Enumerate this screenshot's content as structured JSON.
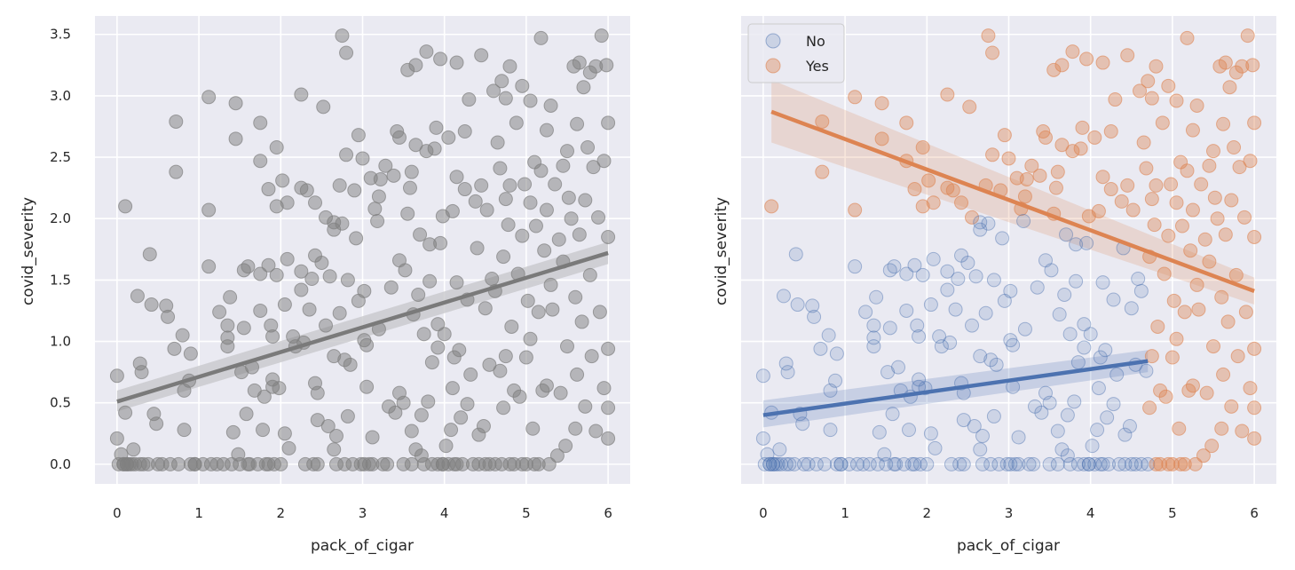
{
  "chart_data": [
    {
      "type": "scatter",
      "panel": "left",
      "xlabel": "pack_of_cigar",
      "ylabel": "covid_severity",
      "xlim": [
        -0.27,
        6.27
      ],
      "ylim": [
        -0.16,
        3.65
      ],
      "xticks": [
        "0",
        "1",
        "2",
        "3",
        "4",
        "5",
        "6"
      ],
      "yticks": [
        "0.0",
        "0.5",
        "1.0",
        "1.5",
        "2.0",
        "2.5",
        "3.0",
        "3.5"
      ],
      "grid": true,
      "colors": {
        "points": "#808080",
        "line": "#7a7a7a",
        "band": "#c8c8cc",
        "background": "#eaeaf2"
      },
      "regression": {
        "x": [
          0,
          6
        ],
        "y": [
          0.51,
          1.72
        ],
        "ci_lower": [
          0.43,
          1.63
        ],
        "ci_upper": [
          0.6,
          1.81
        ]
      },
      "points": [
        [
          0.0,
          0.72
        ],
        [
          0.0,
          0.21
        ],
        [
          0.02,
          0.0
        ],
        [
          0.05,
          0.08
        ],
        [
          0.08,
          0.0
        ],
        [
          0.1,
          2.1
        ],
        [
          0.1,
          0.42
        ],
        [
          0.12,
          0.0
        ],
        [
          0.15,
          0.0
        ],
        [
          0.18,
          0.0
        ],
        [
          0.2,
          0.12
        ],
        [
          0.22,
          0.0
        ],
        [
          0.25,
          1.37
        ],
        [
          0.28,
          0.82
        ],
        [
          0.3,
          0.75
        ],
        [
          0.32,
          0.0
        ],
        [
          0.4,
          1.71
        ],
        [
          0.42,
          1.3
        ],
        [
          0.45,
          0.41
        ],
        [
          0.48,
          0.33
        ],
        [
          0.5,
          0.0
        ],
        [
          0.55,
          0.0
        ],
        [
          0.6,
          1.29
        ],
        [
          0.62,
          1.2
        ],
        [
          0.65,
          0.0
        ],
        [
          0.7,
          0.94
        ],
        [
          0.72,
          2.79
        ],
        [
          0.72,
          2.38
        ],
        [
          0.75,
          0.0
        ],
        [
          0.8,
          1.05
        ],
        [
          0.82,
          0.6
        ],
        [
          0.82,
          0.28
        ],
        [
          0.88,
          0.68
        ],
        [
          0.9,
          0.9
        ],
        [
          0.9,
          0.0
        ],
        [
          0.95,
          0.0
        ],
        [
          1.05,
          0.0
        ],
        [
          1.12,
          2.99
        ],
        [
          1.12,
          2.07
        ],
        [
          1.12,
          1.61
        ],
        [
          1.15,
          0.0
        ],
        [
          1.25,
          1.24
        ],
        [
          1.3,
          0.0
        ],
        [
          1.35,
          1.13
        ],
        [
          1.35,
          1.03
        ],
        [
          1.35,
          0.96
        ],
        [
          1.38,
          1.36
        ],
        [
          1.4,
          0.0
        ],
        [
          1.42,
          0.26
        ],
        [
          1.45,
          2.94
        ],
        [
          1.45,
          2.65
        ],
        [
          1.48,
          0.08
        ],
        [
          1.5,
          0.0
        ],
        [
          1.52,
          0.75
        ],
        [
          1.55,
          1.58
        ],
        [
          1.55,
          1.11
        ],
        [
          1.58,
          0.41
        ],
        [
          1.6,
          1.61
        ],
        [
          1.62,
          0.0
        ],
        [
          1.65,
          0.79
        ],
        [
          1.68,
          0.6
        ],
        [
          1.72,
          0.0
        ],
        [
          1.75,
          2.78
        ],
        [
          1.75,
          2.47
        ],
        [
          1.75,
          1.55
        ],
        [
          1.75,
          1.25
        ],
        [
          1.78,
          0.28
        ],
        [
          1.8,
          0.55
        ],
        [
          1.82,
          0.0
        ],
        [
          1.85,
          1.62
        ],
        [
          1.85,
          2.24
        ],
        [
          1.88,
          1.13
        ],
        [
          1.9,
          1.04
        ],
        [
          1.9,
          0.69
        ],
        [
          1.9,
          0.63
        ],
        [
          1.92,
          0.0
        ],
        [
          1.95,
          2.58
        ],
        [
          1.95,
          2.1
        ],
        [
          1.95,
          1.54
        ],
        [
          1.98,
          0.62
        ],
        [
          2.0,
          0.0
        ],
        [
          2.02,
          2.31
        ],
        [
          2.05,
          1.3
        ],
        [
          2.05,
          0.25
        ],
        [
          2.08,
          1.67
        ],
        [
          2.08,
          2.13
        ],
        [
          2.1,
          0.13
        ],
        [
          2.15,
          1.04
        ],
        [
          2.18,
          0.96
        ],
        [
          2.25,
          3.01
        ],
        [
          2.25,
          2.25
        ],
        [
          2.25,
          1.57
        ],
        [
          2.25,
          1.42
        ],
        [
          2.28,
          0.99
        ],
        [
          2.3,
          0.0
        ],
        [
          2.32,
          2.23
        ],
        [
          2.35,
          1.26
        ],
        [
          2.38,
          1.51
        ],
        [
          2.4,
          0.0
        ],
        [
          2.42,
          2.13
        ],
        [
          2.42,
          1.7
        ],
        [
          2.42,
          0.66
        ],
        [
          2.45,
          0.58
        ],
        [
          2.45,
          0.36
        ],
        [
          2.45,
          0.0
        ],
        [
          2.5,
          1.64
        ],
        [
          2.52,
          2.91
        ],
        [
          2.55,
          2.01
        ],
        [
          2.55,
          1.13
        ],
        [
          2.58,
          0.31
        ],
        [
          2.6,
          1.53
        ],
        [
          2.65,
          1.91
        ],
        [
          2.65,
          1.97
        ],
        [
          2.65,
          0.88
        ],
        [
          2.65,
          0.12
        ],
        [
          2.68,
          0.23
        ],
        [
          2.68,
          0.0
        ],
        [
          2.72,
          2.27
        ],
        [
          2.72,
          1.23
        ],
        [
          2.75,
          3.49
        ],
        [
          2.75,
          1.96
        ],
        [
          2.78,
          0.85
        ],
        [
          2.8,
          3.35
        ],
        [
          2.8,
          2.52
        ],
        [
          2.82,
          1.5
        ],
        [
          2.82,
          0.39
        ],
        [
          2.85,
          0.81
        ],
        [
          2.88,
          0.0
        ],
        [
          2.9,
          2.23
        ],
        [
          2.92,
          1.84
        ],
        [
          2.95,
          2.68
        ],
        [
          2.95,
          1.33
        ],
        [
          2.98,
          0.0
        ],
        [
          3.0,
          2.49
        ],
        [
          3.02,
          1.41
        ],
        [
          3.02,
          1.01
        ],
        [
          3.05,
          0.97
        ],
        [
          3.05,
          0.63
        ],
        [
          3.08,
          0.0
        ],
        [
          3.1,
          2.33
        ],
        [
          3.12,
          0.22
        ],
        [
          3.12,
          0.0
        ],
        [
          3.15,
          2.08
        ],
        [
          3.18,
          1.98
        ],
        [
          3.2,
          2.18
        ],
        [
          3.2,
          1.1
        ],
        [
          3.22,
          2.32
        ],
        [
          3.25,
          0.0
        ],
        [
          3.28,
          2.43
        ],
        [
          3.32,
          0.47
        ],
        [
          3.35,
          1.44
        ],
        [
          3.38,
          2.35
        ],
        [
          3.4,
          0.42
        ],
        [
          3.42,
          2.71
        ],
        [
          3.45,
          2.66
        ],
        [
          3.45,
          1.66
        ],
        [
          3.45,
          0.58
        ],
        [
          3.5,
          0.5
        ],
        [
          3.5,
          0.0
        ],
        [
          3.52,
          1.58
        ],
        [
          3.55,
          3.21
        ],
        [
          3.55,
          2.04
        ],
        [
          3.58,
          2.25
        ],
        [
          3.6,
          2.38
        ],
        [
          3.6,
          0.27
        ],
        [
          3.62,
          1.22
        ],
        [
          3.65,
          3.25
        ],
        [
          3.65,
          2.6
        ],
        [
          3.65,
          0.12
        ],
        [
          3.68,
          1.38
        ],
        [
          3.7,
          1.87
        ],
        [
          3.72,
          0.4
        ],
        [
          3.72,
          0.07
        ],
        [
          3.75,
          1.06
        ],
        [
          3.75,
          0.0
        ],
        [
          3.78,
          3.36
        ],
        [
          3.78,
          2.55
        ],
        [
          3.8,
          0.51
        ],
        [
          3.82,
          1.79
        ],
        [
          3.82,
          1.49
        ],
        [
          3.85,
          0.83
        ],
        [
          3.85,
          0.0
        ],
        [
          3.88,
          2.57
        ],
        [
          3.9,
          2.74
        ],
        [
          3.92,
          1.14
        ],
        [
          3.92,
          0.95
        ],
        [
          3.95,
          3.3
        ],
        [
          3.95,
          1.8
        ],
        [
          3.98,
          2.02
        ],
        [
          3.98,
          0.0
        ],
        [
          4.0,
          1.06
        ],
        [
          4.02,
          0.15
        ],
        [
          4.05,
          2.66
        ],
        [
          4.08,
          0.28
        ],
        [
          4.1,
          2.06
        ],
        [
          4.1,
          0.62
        ],
        [
          4.12,
          0.87
        ],
        [
          4.12,
          0.0
        ],
        [
          4.15,
          3.27
        ],
        [
          4.15,
          2.34
        ],
        [
          4.15,
          1.48
        ],
        [
          4.18,
          0.93
        ],
        [
          4.2,
          0.38
        ],
        [
          4.22,
          0.0
        ],
        [
          4.25,
          2.71
        ],
        [
          4.25,
          2.24
        ],
        [
          4.28,
          1.34
        ],
        [
          4.28,
          0.49
        ],
        [
          4.3,
          2.97
        ],
        [
          4.32,
          0.73
        ],
        [
          4.35,
          0.0
        ],
        [
          4.38,
          2.14
        ],
        [
          4.4,
          1.76
        ],
        [
          4.42,
          0.24
        ],
        [
          4.45,
          3.33
        ],
        [
          4.45,
          2.27
        ],
        [
          4.48,
          0.31
        ],
        [
          4.5,
          1.27
        ],
        [
          4.5,
          0.0
        ],
        [
          4.52,
          2.07
        ],
        [
          4.55,
          0.81
        ],
        [
          4.58,
          1.51
        ],
        [
          4.6,
          3.04
        ],
        [
          4.62,
          1.41
        ],
        [
          4.62,
          0.0
        ],
        [
          4.65,
          2.62
        ],
        [
          4.68,
          2.41
        ],
        [
          4.68,
          0.76
        ],
        [
          4.7,
          3.12
        ],
        [
          4.72,
          1.69
        ],
        [
          4.72,
          0.46
        ],
        [
          4.75,
          2.98
        ],
        [
          4.75,
          2.16
        ],
        [
          4.75,
          0.88
        ],
        [
          4.78,
          1.95
        ],
        [
          4.8,
          3.24
        ],
        [
          4.8,
          2.27
        ],
        [
          4.8,
          0.0
        ],
        [
          4.82,
          1.12
        ],
        [
          4.85,
          0.6
        ],
        [
          4.88,
          2.78
        ],
        [
          4.9,
          1.55
        ],
        [
          4.92,
          0.55
        ],
        [
          4.95,
          3.08
        ],
        [
          4.95,
          1.86
        ],
        [
          4.98,
          2.28
        ],
        [
          5.0,
          0.87
        ],
        [
          5.0,
          0.0
        ],
        [
          5.02,
          1.33
        ],
        [
          5.05,
          2.96
        ],
        [
          5.05,
          2.13
        ],
        [
          5.05,
          1.02
        ],
        [
          5.08,
          0.29
        ],
        [
          5.1,
          2.46
        ],
        [
          5.12,
          1.94
        ],
        [
          5.15,
          1.24
        ],
        [
          5.18,
          3.47
        ],
        [
          5.18,
          2.39
        ],
        [
          5.2,
          0.6
        ],
        [
          5.22,
          1.74
        ],
        [
          5.25,
          2.72
        ],
        [
          5.25,
          2.07
        ],
        [
          5.25,
          0.64
        ],
        [
          5.28,
          0.0
        ],
        [
          5.3,
          1.46
        ],
        [
          5.3,
          2.92
        ],
        [
          5.32,
          1.26
        ],
        [
          5.35,
          2.28
        ],
        [
          5.38,
          0.07
        ],
        [
          5.4,
          1.83
        ],
        [
          5.42,
          0.58
        ],
        [
          5.45,
          2.43
        ],
        [
          5.45,
          1.65
        ],
        [
          5.48,
          0.15
        ],
        [
          5.5,
          2.55
        ],
        [
          5.5,
          0.96
        ],
        [
          5.52,
          2.17
        ],
        [
          5.55,
          2.0
        ],
        [
          5.58,
          3.24
        ],
        [
          5.6,
          1.36
        ],
        [
          5.6,
          0.29
        ],
        [
          5.62,
          2.77
        ],
        [
          5.62,
          0.73
        ],
        [
          5.65,
          3.27
        ],
        [
          5.65,
          1.87
        ],
        [
          5.68,
          1.16
        ],
        [
          5.7,
          3.07
        ],
        [
          5.72,
          2.15
        ],
        [
          5.72,
          0.47
        ],
        [
          5.75,
          2.58
        ],
        [
          5.78,
          3.19
        ],
        [
          5.78,
          1.54
        ],
        [
          5.8,
          0.88
        ],
        [
          5.82,
          2.42
        ],
        [
          5.85,
          3.24
        ],
        [
          5.85,
          0.27
        ],
        [
          5.88,
          2.01
        ],
        [
          5.9,
          1.24
        ],
        [
          5.92,
          3.49
        ],
        [
          5.95,
          2.47
        ],
        [
          5.95,
          0.62
        ],
        [
          5.98,
          3.25
        ],
        [
          6.0,
          2.78
        ],
        [
          6.0,
          1.85
        ],
        [
          6.0,
          0.94
        ],
        [
          6.0,
          0.46
        ],
        [
          6.0,
          0.21
        ],
        [
          4.05,
          0.0
        ],
        [
          4.15,
          0.0
        ],
        [
          4.42,
          0.0
        ],
        [
          4.55,
          0.0
        ],
        [
          4.7,
          0.0
        ],
        [
          4.85,
          0.0
        ],
        [
          4.95,
          0.0
        ],
        [
          5.1,
          0.0
        ],
        [
          5.15,
          0.0
        ],
        [
          2.78,
          0.0
        ],
        [
          3.02,
          0.0
        ],
        [
          3.3,
          0.0
        ],
        [
          3.6,
          0.0
        ],
        [
          3.92,
          0.0
        ],
        [
          3.98,
          0.0
        ],
        [
          1.22,
          0.0
        ],
        [
          1.6,
          0.0
        ],
        [
          1.85,
          0.0
        ],
        [
          0.95,
          0.0
        ],
        [
          0.38,
          0.0
        ],
        [
          0.28,
          0.0
        ],
        [
          0.08,
          0.0
        ],
        [
          0.12,
          0.0
        ]
      ]
    },
    {
      "type": "scatter",
      "panel": "right",
      "xlabel": "pack_of_cigar",
      "ylabel": "covid_severity",
      "xlim": [
        -0.27,
        6.27
      ],
      "ylim": [
        -0.16,
        3.65
      ],
      "xticks": [
        "0",
        "1",
        "2",
        "3",
        "4",
        "5",
        "6"
      ],
      "grid": true,
      "legend": {
        "position": "top-left",
        "entries": [
          {
            "label": "No",
            "color": "#4c72b0"
          },
          {
            "label": "Yes",
            "color": "#dd8452"
          }
        ]
      },
      "series": [
        {
          "name": "No",
          "color": "#4c72b0",
          "split_max_x": 4.7,
          "regression": {
            "x": [
              0,
              4.7
            ],
            "y": [
              0.4,
              0.84
            ],
            "ci_lower": [
              0.3,
              0.75
            ],
            "ci_upper": [
              0.52,
              0.93
            ]
          }
        },
        {
          "name": "Yes",
          "color": "#dd8452",
          "split_min_x": 0.08,
          "regression": {
            "x": [
              0.1,
              6
            ],
            "y": [
              2.87,
              1.41
            ],
            "ci_lower": [
              2.62,
              1.3
            ],
            "ci_upper": [
              3.13,
              1.52
            ]
          }
        }
      ]
    }
  ]
}
